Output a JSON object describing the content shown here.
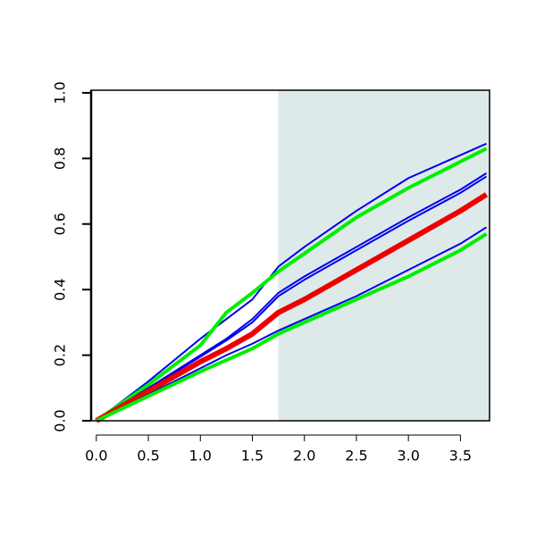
{
  "chart_data": {
    "type": "line",
    "x": [
      0,
      0.5,
      1,
      1.25,
      1.5,
      1.75,
      2,
      2.5,
      3,
      3.5,
      3.75
    ],
    "series": [
      {
        "color": "#0000ee",
        "line_width": 2,
        "values": [
          0,
          0.12,
          0.25,
          0.31,
          0.37,
          0.47,
          0.53,
          0.64,
          0.74,
          0.81,
          0.845
        ]
      },
      {
        "color": "#00ee00",
        "line_width": 4,
        "values": [
          0,
          0.11,
          0.23,
          0.33,
          0.39,
          0.455,
          0.51,
          0.62,
          0.71,
          0.79,
          0.83
        ]
      },
      {
        "color": "#0000ee",
        "line_width": 2,
        "values": [
          0,
          0.1,
          0.2,
          0.25,
          0.31,
          0.39,
          0.44,
          0.53,
          0.62,
          0.705,
          0.755
        ]
      },
      {
        "color": "#0000ee",
        "line_width": 2,
        "values": [
          0,
          0.097,
          0.195,
          0.245,
          0.3,
          0.38,
          0.43,
          0.52,
          0.61,
          0.695,
          0.745
        ]
      },
      {
        "color": "#ee0000",
        "line_width": 6,
        "values": [
          0,
          0.09,
          0.18,
          0.22,
          0.265,
          0.33,
          0.37,
          0.46,
          0.55,
          0.64,
          0.69
        ]
      },
      {
        "color": "#0000ee",
        "line_width": 2,
        "values": [
          0,
          0.08,
          0.16,
          0.2,
          0.235,
          0.275,
          0.31,
          0.38,
          0.46,
          0.54,
          0.59
        ]
      },
      {
        "color": "#00ee00",
        "line_width": 4,
        "values": [
          0,
          0.075,
          0.15,
          0.185,
          0.22,
          0.265,
          0.3,
          0.37,
          0.44,
          0.52,
          0.57
        ]
      }
    ],
    "shade_xlim": [
      1.75,
      3.78
    ],
    "shade_color": "#deeaea",
    "xlim": [
      -0.05,
      3.78
    ],
    "ylim": [
      0,
      1.008
    ],
    "xticks": [
      {
        "value": 0,
        "label": "0.0"
      },
      {
        "value": 0.5,
        "label": "0.5"
      },
      {
        "value": 1,
        "label": "1.0"
      },
      {
        "value": 1.5,
        "label": "1.5"
      },
      {
        "value": 2,
        "label": "2.0"
      },
      {
        "value": 2.5,
        "label": "2.5"
      },
      {
        "value": 3,
        "label": "3.0"
      },
      {
        "value": 3.5,
        "label": "3.5"
      }
    ],
    "yticks": [
      {
        "value": 0,
        "label": "0.0"
      },
      {
        "value": 0.2,
        "label": "0.2"
      },
      {
        "value": 0.4,
        "label": "0.4"
      },
      {
        "value": 0.6,
        "label": "0.6"
      },
      {
        "value": 0.8,
        "label": "0.8"
      },
      {
        "value": 1,
        "label": "1.0"
      }
    ]
  }
}
